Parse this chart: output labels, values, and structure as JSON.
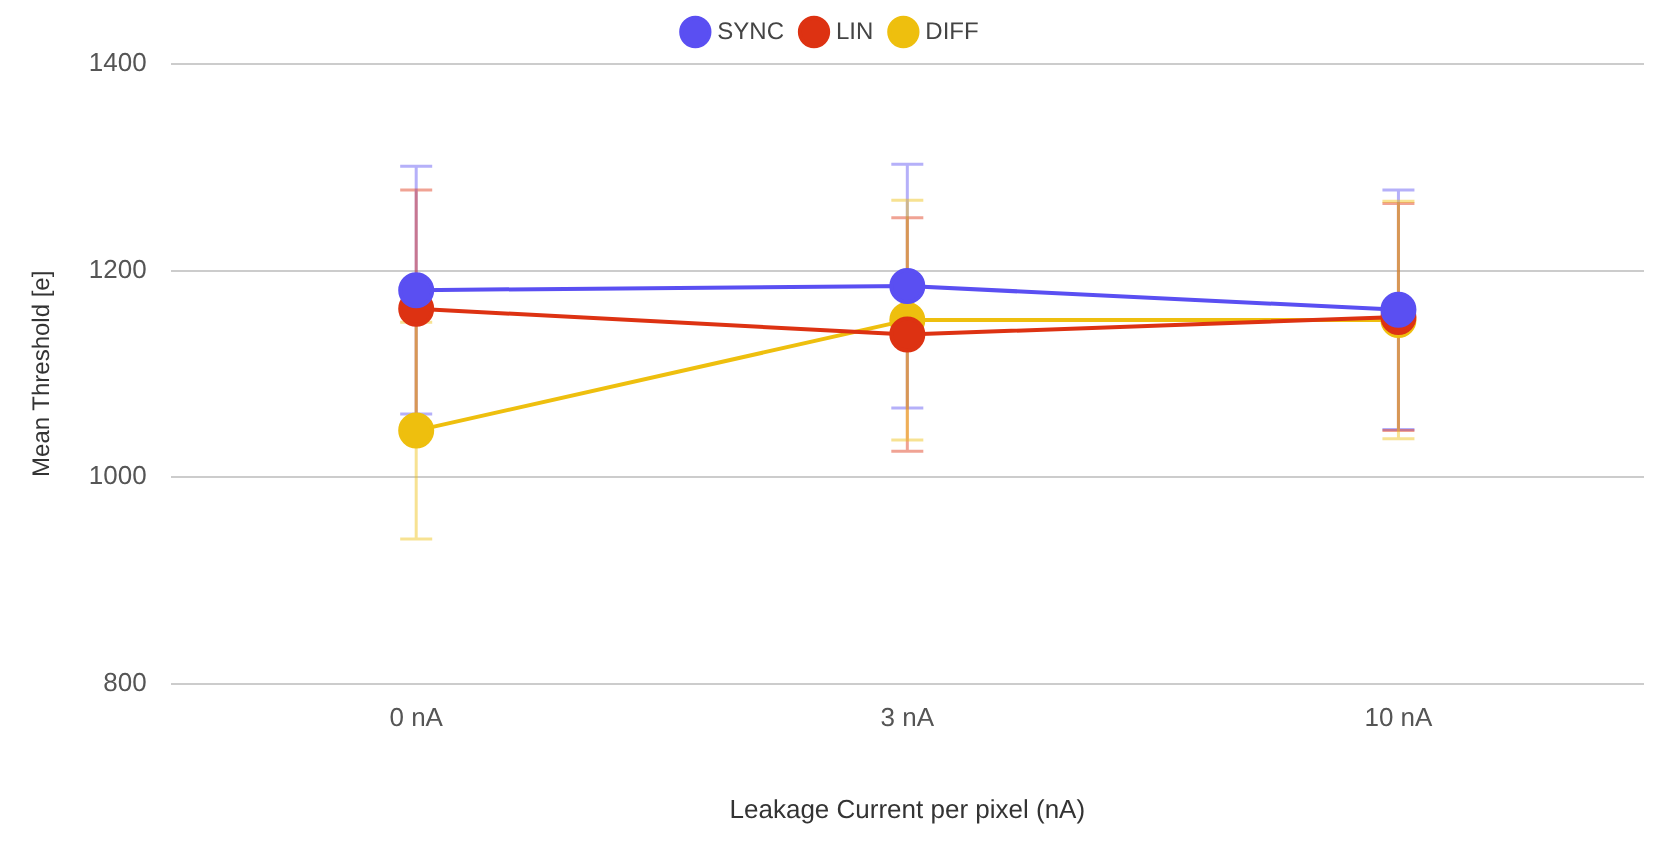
{
  "chart_data": {
    "type": "line",
    "xlabel": "Leakage Current per pixel (nA)",
    "ylabel": "Mean Threshold [e]",
    "categories": [
      "0 nA",
      "3 nA",
      "10 nA"
    ],
    "series": [
      {
        "name": "SYNC",
        "color": "#5a4ff2",
        "values": [
          1181,
          1185,
          1162
        ],
        "errors": [
          120,
          118,
          116
        ]
      },
      {
        "name": "LIN",
        "color": "#dd3212",
        "values": [
          1163,
          1138,
          1155
        ],
        "errors": [
          115,
          113,
          110
        ]
      },
      {
        "name": "DIFF",
        "color": "#eebf0e",
        "values": [
          1045,
          1152,
          1152
        ],
        "errors": [
          105,
          116,
          115
        ]
      }
    ],
    "ylim": [
      800,
      1400
    ],
    "yticks": [
      800,
      1000,
      1200,
      1400
    ],
    "grid": "y",
    "legend": "top",
    "marker": "circle",
    "line_style": "solid"
  }
}
